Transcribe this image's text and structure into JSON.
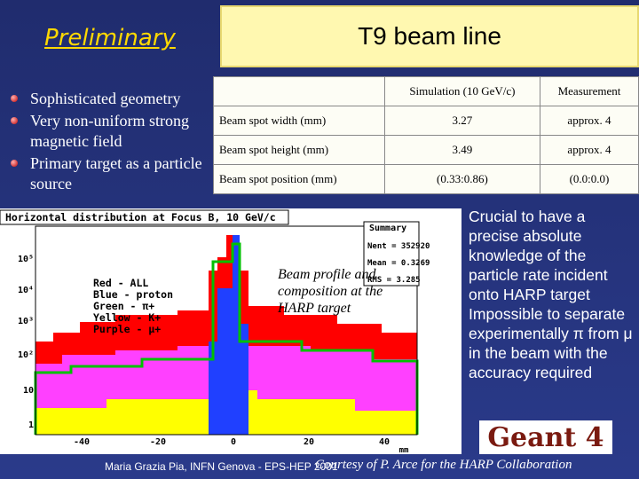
{
  "header": {
    "preliminary": "Preliminary",
    "title": "T9 beam line"
  },
  "bullets": [
    "Sophisticated geometry",
    "Very non-uniform strong magnetic field",
    "Primary target as a particle source"
  ],
  "table": {
    "columns": [
      "Simulation (10 GeV/c)",
      "Measurement"
    ],
    "rows": [
      [
        "Beam spot width  (mm)",
        "3.27",
        "approx. 4"
      ],
      [
        "Beam spot height  (mm)",
        "3.49",
        "approx. 4"
      ],
      [
        "Beam spot position (mm)",
        "(0.33:0.86)",
        "(0.0:0.0)"
      ]
    ]
  },
  "histogram": {
    "title": "Horizontal distribution at Focus B, 10 GeV/c",
    "summary": {
      "title": "Summary",
      "entries": [
        "Nent = 352920",
        "Mean = 0.3269",
        "RMS = 3.285"
      ]
    },
    "legend": [
      "Red - ALL",
      "Blue - proton",
      "Green - π+",
      "Yellow - K+",
      "Purple - μ+"
    ],
    "x_ticks": [
      "-40",
      "-20",
      "0",
      "20",
      "40"
    ],
    "x_unit": "mm",
    "y_ticks": [
      "10⁵",
      "10⁴",
      "10³",
      "10²",
      "10",
      "1"
    ]
  },
  "annotation": "Beam profile and composition at the HARP target",
  "right_text": [
    "Crucial to have a precise absolute knowledge of the particle rate incident onto HARP target",
    "Impossible to separate experimentally π from μ in the beam with the accuracy required"
  ],
  "logo": "Geant 4",
  "footer": {
    "author": "Maria Grazia Pia, INFN Genova - EPS-HEP 2001",
    "credit": "Courtesy of P. Arce for the HARP Collaboration"
  }
}
